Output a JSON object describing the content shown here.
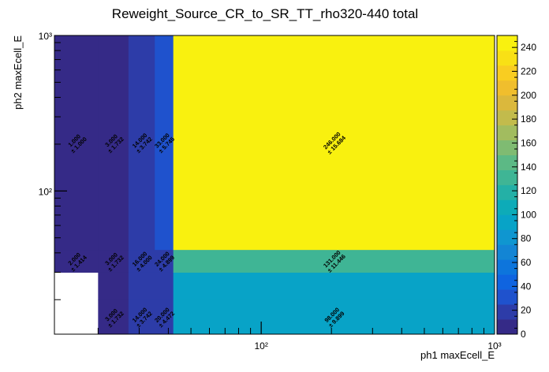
{
  "chart_data": {
    "type": "heatmap",
    "title": "Reweight_Source_CR_to_SR_TT_rho320-440 total",
    "xlabel": "ph1 maxEcell_E",
    "ylabel": "ph2 maxEcell_E",
    "x_scale": "log",
    "y_scale": "log",
    "x_range": [
      13,
      1000
    ],
    "y_range": [
      12,
      1000
    ],
    "x_edges": [
      13,
      20,
      27,
      35,
      42,
      1000
    ],
    "y_edges": [
      12,
      20,
      30,
      42,
      1000
    ],
    "x_tick_labels": [
      "10²",
      "10³"
    ],
    "y_tick_labels": [
      "10²",
      "10³"
    ],
    "z_range": [
      0,
      250
    ],
    "colorbar_ticks": [
      "0",
      "20",
      "40",
      "60",
      "80",
      "100",
      "120",
      "140",
      "160",
      "180",
      "200",
      "220",
      "240"
    ],
    "cells": [
      {
        "ix": 0,
        "iy": 2,
        "value": 2.0,
        "label": "2.000",
        "error": "± 1.414"
      },
      {
        "ix": 0,
        "iy": 3,
        "value": 1.0,
        "label": "1.000",
        "error": "± 1.000"
      },
      {
        "ix": 1,
        "iy": 0,
        "value": 3.0,
        "label": "3.000",
        "error": "± 1.732"
      },
      {
        "ix": 1,
        "iy": 1,
        "value": 3.0,
        "label": "",
        "error": ""
      },
      {
        "ix": 1,
        "iy": 2,
        "value": 3.0,
        "label": "3.000",
        "error": "± 1.732"
      },
      {
        "ix": 1,
        "iy": 3,
        "value": 3.0,
        "label": "3.000",
        "error": "± 1.732"
      },
      {
        "ix": 2,
        "iy": 0,
        "value": 14.0,
        "label": "14.000",
        "error": "± 3.742"
      },
      {
        "ix": 2,
        "iy": 1,
        "value": 14.0,
        "label": "",
        "error": ""
      },
      {
        "ix": 2,
        "iy": 2,
        "value": 16.0,
        "label": "16.000",
        "error": "± 4.000"
      },
      {
        "ix": 2,
        "iy": 3,
        "value": 14.0,
        "label": "14.000",
        "error": "± 3.742"
      },
      {
        "ix": 3,
        "iy": 0,
        "value": 20.0,
        "label": "20.000",
        "error": "± 4.472"
      },
      {
        "ix": 3,
        "iy": 1,
        "value": 20.0,
        "label": "",
        "error": ""
      },
      {
        "ix": 3,
        "iy": 2,
        "value": 24.0,
        "label": "24.000",
        "error": "± 4.899"
      },
      {
        "ix": 3,
        "iy": 3,
        "value": 33.0,
        "label": "33.000",
        "error": "± 5.745"
      },
      {
        "ix": 4,
        "iy": 0,
        "value": 98.0,
        "label": "98.000",
        "error": "± 9.899"
      },
      {
        "ix": 4,
        "iy": 1,
        "value": 98.0,
        "label": "",
        "error": ""
      },
      {
        "ix": 4,
        "iy": 2,
        "value": 131.0,
        "label": "131.000",
        "error": "± 11.446"
      },
      {
        "ix": 4,
        "iy": 3,
        "value": 246.0,
        "label": "246.000",
        "error": "± 15.684"
      }
    ],
    "colorbar_colors": [
      "#352a87",
      "#2d3ca8",
      "#1f52cd",
      "#0f64e0",
      "#0d75dc",
      "#1385d4",
      "#0f96d0",
      "#08a3c7",
      "#0dabb8",
      "#24b0a6",
      "#3fb595",
      "#5cb985",
      "#7fbb72",
      "#a2bc5f",
      "#c2bb4c",
      "#dbb83c",
      "#f0be2d",
      "#f9cd21",
      "#f9e015",
      "#f9f10f"
    ]
  }
}
